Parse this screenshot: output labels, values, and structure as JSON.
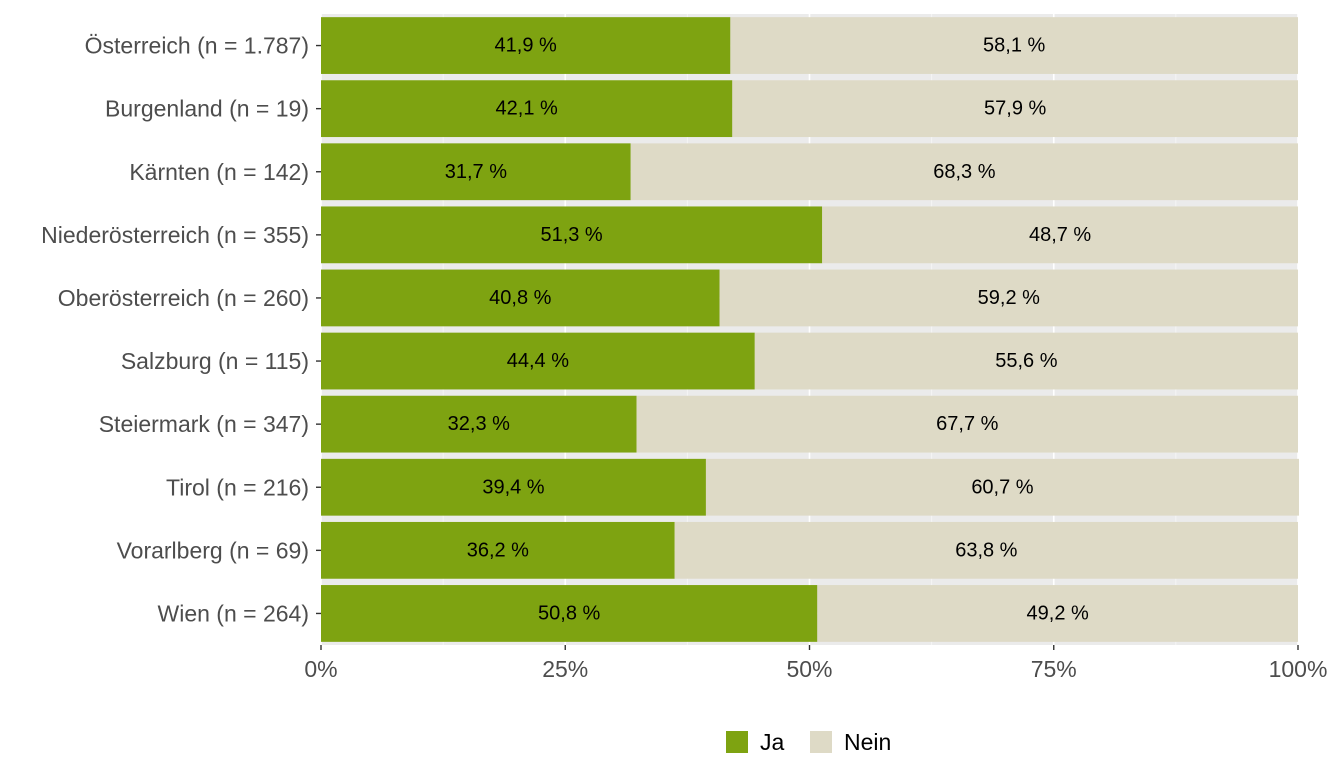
{
  "chart_data": {
    "type": "bar",
    "orientation": "horizontal",
    "stacked": true,
    "percent_scale": true,
    "categories": [
      "Österreich (n = 1.787)",
      "Burgenland (n = 19)",
      "Kärnten (n = 142)",
      "Niederösterreich (n = 355)",
      "Oberösterreich (n = 260)",
      "Salzburg (n = 115)",
      "Steiermark (n = 347)",
      "Tirol (n = 216)",
      "Vorarlberg (n = 69)",
      "Wien (n = 264)"
    ],
    "series": [
      {
        "name": "Ja",
        "color": "#7ea311",
        "values": [
          41.9,
          42.1,
          31.7,
          51.3,
          40.8,
          44.4,
          32.3,
          39.4,
          36.2,
          50.8
        ],
        "labels": [
          "41,9 %",
          "42,1 %",
          "31,7 %",
          "51,3 %",
          "40,8 %",
          "44,4 %",
          "32,3 %",
          "39,4 %",
          "36,2 %",
          "50,8 %"
        ]
      },
      {
        "name": "Nein",
        "color": "#dedac6",
        "values": [
          58.1,
          57.9,
          68.3,
          48.7,
          59.2,
          55.6,
          67.7,
          60.7,
          63.8,
          49.2
        ],
        "labels": [
          "58,1 %",
          "57,9 %",
          "68,3 %",
          "48,7 %",
          "59,2 %",
          "55,6 %",
          "67,7 %",
          "60,7 %",
          "63,8 %",
          "49,2 %"
        ]
      }
    ],
    "xlim": [
      0,
      100
    ],
    "xticks": [
      0,
      25,
      50,
      75,
      100
    ],
    "xtick_labels": [
      "0%",
      "25%",
      "50%",
      "75%",
      "100%"
    ],
    "title": "",
    "xlabel": "",
    "ylabel": "",
    "grid": true,
    "panel_background": "#ebebeb",
    "legend_position": "bottom"
  }
}
